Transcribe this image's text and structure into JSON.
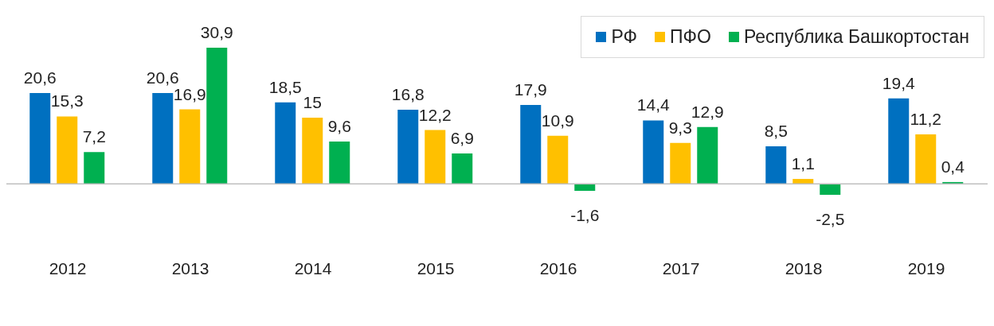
{
  "chart_data": {
    "type": "bar",
    "categories": [
      "2012",
      "2013",
      "2014",
      "2015",
      "2016",
      "2017",
      "2018",
      "2019"
    ],
    "series": [
      {
        "name": "РФ",
        "color": "#0070c0",
        "values": [
          20.6,
          20.6,
          18.5,
          16.8,
          17.9,
          14.4,
          8.5,
          19.4
        ],
        "value_labels": [
          "20,6",
          "20,6",
          "18,5",
          "16,8",
          "17,9",
          "14,4",
          "8,5",
          "19,4"
        ]
      },
      {
        "name": "ПФО",
        "color": "#ffc000",
        "values": [
          15.3,
          16.9,
          15,
          12.2,
          10.9,
          9.3,
          1.1,
          11.2
        ],
        "value_labels": [
          "15,3",
          "16,9",
          "15",
          "12,2",
          "10,9",
          "9,3",
          "1,1",
          "11,2"
        ]
      },
      {
        "name": "Республика Башкортостан",
        "color": "#00b050",
        "values": [
          7.2,
          30.9,
          9.6,
          6.9,
          -1.6,
          12.9,
          -2.5,
          0.4
        ],
        "value_labels": [
          "7,2",
          "30,9",
          "9,6",
          "6,9",
          "-1,6",
          "12,9",
          "-2,5",
          "0,4"
        ]
      }
    ],
    "legend": "top right"
  }
}
